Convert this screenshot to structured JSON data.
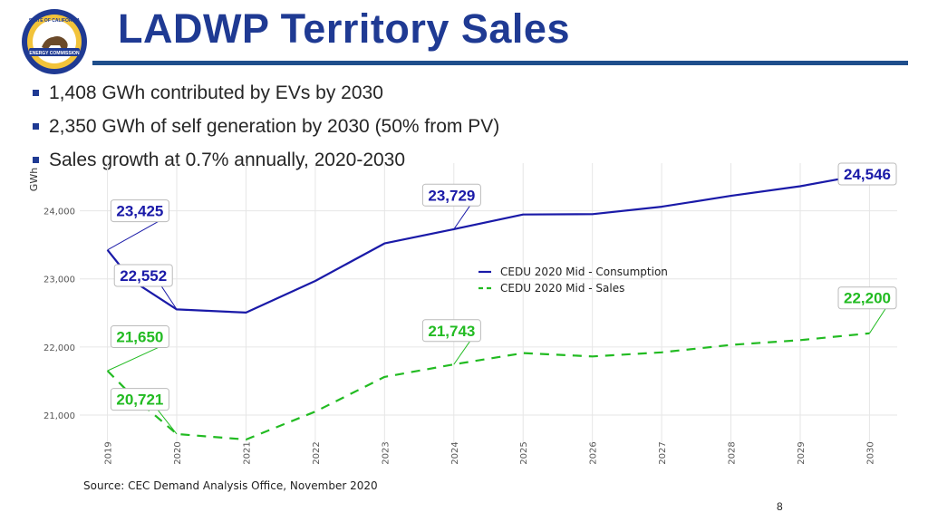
{
  "slide": {
    "title": "LADWP Territory Sales",
    "bullets": [
      "1,408 GWh contributed by EVs by 2030",
      "2,350 GWh of self generation by 2030 (50% from PV)",
      "Sales growth at 0.7% annually, 2020-2030"
    ],
    "source": "Source: CEC Demand Analysis Office, November 2020",
    "page_number": "8",
    "logo": {
      "icon": "california-energy-commission-seal",
      "text_top": "STATE OF CALIFORNIA",
      "text_bottom": "ENERGY COMMISSION"
    }
  },
  "colors": {
    "title": "#1f3a93",
    "consumption": "#1a1aa8",
    "sales": "#22bb22",
    "grid": "#e6e6e6"
  },
  "chart_data": {
    "type": "line",
    "title": "",
    "xlabel": "",
    "ylabel": "GWh",
    "x": [
      2019,
      2020,
      2021,
      2022,
      2023,
      2024,
      2025,
      2026,
      2027,
      2028,
      2029,
      2030
    ],
    "x_tick_labels": [
      "2019",
      "2020",
      "2021",
      "2022",
      "2023",
      "2024",
      "2025",
      "2026",
      "2027",
      "2028",
      "2029",
      "2030"
    ],
    "y_ticks": [
      21000,
      22000,
      23000,
      24000
    ],
    "y_tick_labels": [
      "21,000",
      "22,000",
      "23,000",
      "24,000"
    ],
    "ylim": [
      20600,
      24700
    ],
    "xlim": [
      2018.6,
      2030.4
    ],
    "grid": true,
    "legend_position": "center-right",
    "series": [
      {
        "name": "CEDU 2020 Mid - Consumption",
        "style": "solid",
        "x": [
          2019,
          2019.35,
          2020,
          2021,
          2022,
          2023,
          2024,
          2025,
          2026,
          2027,
          2028,
          2029,
          2030
        ],
        "values": [
          23425,
          22980,
          22552,
          22505,
          22970,
          23520,
          23729,
          23945,
          23950,
          24060,
          24220,
          24360,
          24546
        ]
      },
      {
        "name": "CEDU 2020 Mid - Sales",
        "style": "dashed",
        "x": [
          2019,
          2019.35,
          2020,
          2021,
          2022,
          2023,
          2024,
          2025,
          2026,
          2027,
          2028,
          2029,
          2030
        ],
        "values": [
          21650,
          21290,
          20721,
          20640,
          21050,
          21560,
          21743,
          21910,
          21860,
          21920,
          22030,
          22100,
          22200
        ]
      }
    ],
    "annotations": [
      {
        "text": "23,425",
        "series": "consumption",
        "x": 2019,
        "y": 23425,
        "text_x": 2019.05,
        "text_y": 24000
      },
      {
        "text": "22,552",
        "series": "consumption",
        "x": 2020,
        "y": 22552,
        "text_x": 2019.1,
        "text_y": 23050
      },
      {
        "text": "23,729",
        "series": "consumption",
        "x": 2024,
        "y": 23729,
        "text_x": 2023.55,
        "text_y": 24230
      },
      {
        "text": "24,546",
        "series": "consumption",
        "x": 2030,
        "y": 24546,
        "text_x": 2029.55,
        "text_y": 24540
      },
      {
        "text": "21,650",
        "series": "sales",
        "x": 2019,
        "y": 21650,
        "text_x": 2019.05,
        "text_y": 22150
      },
      {
        "text": "20,721",
        "series": "sales",
        "x": 2020,
        "y": 20721,
        "text_x": 2019.05,
        "text_y": 21230
      },
      {
        "text": "21,743",
        "series": "sales",
        "x": 2024,
        "y": 21743,
        "text_x": 2023.55,
        "text_y": 22240
      },
      {
        "text": "22,200",
        "series": "sales",
        "x": 2030,
        "y": 22200,
        "text_x": 2029.55,
        "text_y": 22720
      }
    ]
  }
}
